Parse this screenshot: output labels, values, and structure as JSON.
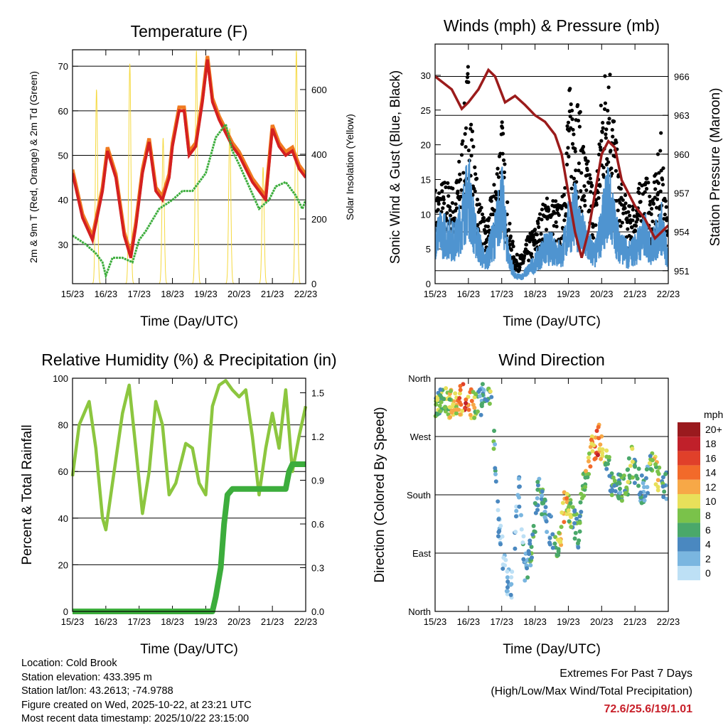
{
  "colors": {
    "red": "#d42020",
    "orange": "#f07a20",
    "green": "#3cad3c",
    "yellow": "#f5d940",
    "black": "#000000",
    "blue": "#4f94d0",
    "maroon": "#9b1b1b",
    "rh": "#8cc63f",
    "precip": "#3cad3c",
    "extremes": "#c8202a"
  },
  "chart_data": [
    {
      "type": "line",
      "title": "Temperature (F)",
      "xlabel": "Time (Day/UTC)",
      "ylabel": "2m & 9m T (Red, Orange) & 2m Td (Green)",
      "ylabel_right": "Solar Insolation (Yellow)",
      "xticks": [
        "15/23",
        "16/23",
        "17/23",
        "18/23",
        "19/23",
        "20/23",
        "21/23",
        "22/23"
      ],
      "ylim": [
        21.2,
        73.7
      ],
      "yticks": [
        30,
        40,
        50,
        60,
        70
      ],
      "ylim_right": [
        0,
        723
      ],
      "yticks_right": [
        0,
        200,
        400,
        600
      ],
      "series": [
        {
          "name": "2m T",
          "color": "red",
          "x": [
            0,
            0.3,
            0.6,
            0.9,
            1.05,
            1.3,
            1.55,
            1.75,
            1.9,
            2.1,
            2.3,
            2.5,
            2.7,
            2.9,
            3.0,
            3.2,
            3.35,
            3.5,
            3.7,
            3.9,
            4.05,
            4.2,
            4.4,
            4.6,
            4.8,
            5.0,
            5.2,
            5.4,
            5.6,
            5.8,
            6.0,
            6.2,
            6.4,
            6.6,
            6.8,
            7.0
          ],
          "y": [
            46,
            36,
            31,
            42,
            51,
            45,
            32,
            27,
            34,
            46,
            53,
            42,
            40,
            45,
            52,
            60,
            60,
            50,
            52,
            62,
            71.5,
            62,
            58,
            55,
            52,
            50,
            47,
            44,
            42,
            40,
            56,
            52,
            50,
            51,
            47,
            45
          ]
        },
        {
          "name": "Td",
          "color": "green",
          "x": [
            0,
            0.4,
            0.7,
            0.9,
            1.0,
            1.2,
            1.5,
            1.8,
            2.0,
            2.2,
            2.6,
            3.0,
            3.3,
            3.6,
            4.0,
            4.3,
            4.6,
            4.8,
            5.0,
            5.3,
            5.6,
            5.9,
            6.1,
            6.4,
            6.7,
            6.9,
            7.0
          ],
          "y": [
            32,
            30,
            28,
            26,
            23,
            27,
            27,
            26,
            31,
            33,
            38,
            40,
            42,
            42,
            46,
            54,
            57,
            51,
            48,
            43,
            38,
            40,
            43,
            44,
            41,
            38,
            40
          ]
        },
        {
          "name": "Solar",
          "color": "yellow",
          "peak_day_offsets": [
            0.72,
            1.72,
            2.72,
            3.72,
            4.72,
            5.72,
            6.72
          ],
          "peaks": [
            600,
            680,
            450,
            720,
            480,
            360,
            720
          ]
        }
      ]
    },
    {
      "type": "scatter",
      "title": "Winds (mph) & Pressure (mb)",
      "xlabel": "Time (Day/UTC)",
      "ylabel": "Sonic Wind & Gust (Blue, Black)",
      "ylabel_right": "Station Pressure (Maroon)",
      "xticks": [
        "15/23",
        "16/23",
        "17/23",
        "18/23",
        "19/23",
        "20/23",
        "21/23",
        "22/23"
      ],
      "ylim": [
        0,
        34.5
      ],
      "yticks": [
        0,
        5,
        10,
        15,
        20,
        25,
        30
      ],
      "ylim_right": [
        950,
        968.5
      ],
      "yticks_right": [
        951,
        954,
        957,
        960,
        963,
        966
      ],
      "wind_x": [
        0,
        0.3,
        0.6,
        0.8,
        1.0,
        1.2,
        1.5,
        1.8,
        2.0,
        2.2,
        2.4,
        2.6,
        2.8,
        3.0,
        3.3,
        3.6,
        3.8,
        4.0,
        4.2,
        4.5,
        4.8,
        5.0,
        5.2,
        5.5,
        5.8,
        6.0,
        6.3,
        6.5,
        6.8,
        7.0
      ],
      "wind_sonic": [
        7,
        7,
        6,
        9,
        13,
        7,
        3,
        7,
        12,
        4,
        1,
        1,
        2,
        3,
        5,
        5,
        4,
        8,
        10,
        6,
        4,
        8,
        12,
        6,
        4,
        5,
        7,
        5,
        8,
        3
      ],
      "wind_gust": [
        10,
        11,
        10,
        15,
        24,
        12,
        6,
        11,
        18,
        7,
        3,
        3,
        5,
        6,
        9,
        9,
        8,
        20,
        22,
        14,
        10,
        20,
        26,
        12,
        8,
        9,
        12,
        9,
        16,
        5
      ],
      "pressure_x": [
        0,
        0.5,
        0.8,
        1.0,
        1.3,
        1.6,
        1.8,
        2.1,
        2.4,
        2.7,
        3.0,
        3.3,
        3.6,
        3.8,
        4.0,
        4.2,
        4.4,
        4.6,
        4.8,
        5.0,
        5.2,
        5.4,
        5.6,
        5.8,
        6.0,
        6.3,
        6.6,
        7.0
      ],
      "pressure": [
        966,
        965,
        963.5,
        964,
        965,
        966.5,
        966,
        964,
        964.5,
        963.8,
        963,
        962.5,
        961.5,
        960,
        957,
        954,
        952,
        954,
        957,
        960,
        961,
        960.5,
        958,
        957,
        956,
        955,
        953.5,
        954.5
      ]
    },
    {
      "type": "line",
      "title": "Relative Humidity (%) & Precipitation (in)",
      "xlabel": "Time (Day/UTC)",
      "ylabel": "Percent & Total Rainfall",
      "xticks": [
        "15/23",
        "16/23",
        "17/23",
        "18/23",
        "19/23",
        "20/23",
        "21/23",
        "22/23"
      ],
      "ylim": [
        0,
        100
      ],
      "yticks": [
        0,
        20,
        40,
        60,
        80,
        100
      ],
      "ylim_right": [
        0,
        1.6
      ],
      "yticks_right": [
        "0.0",
        "0.3",
        "0.6",
        "0.9",
        "1.2",
        "1.5"
      ],
      "rh_x": [
        0,
        0.2,
        0.5,
        0.7,
        0.9,
        1.0,
        1.2,
        1.5,
        1.7,
        1.9,
        2.1,
        2.3,
        2.5,
        2.7,
        2.9,
        3.1,
        3.4,
        3.6,
        3.8,
        4.0,
        4.2,
        4.4,
        4.6,
        4.8,
        5.0,
        5.2,
        5.4,
        5.6,
        5.8,
        6.0,
        6.2,
        6.4,
        6.6,
        6.8,
        7.0
      ],
      "rh": [
        58,
        80,
        90,
        70,
        40,
        35,
        55,
        85,
        97,
        70,
        42,
        60,
        90,
        80,
        50,
        55,
        72,
        70,
        55,
        50,
        88,
        97,
        99,
        95,
        92,
        95,
        75,
        50,
        70,
        85,
        70,
        95,
        60,
        75,
        88
      ],
      "precip_x": [
        0,
        4.2,
        4.3,
        4.45,
        4.55,
        4.65,
        4.8,
        6.4,
        6.5,
        6.6,
        7.0
      ],
      "precip": [
        0,
        0,
        0.1,
        0.3,
        0.6,
        0.8,
        0.84,
        0.84,
        0.96,
        1.01,
        1.01
      ]
    },
    {
      "type": "scatter",
      "title": "Wind Direction",
      "xlabel": "Time (Day/UTC)",
      "ylabel": "Direction (Colored By Speed)",
      "xticks": [
        "15/23",
        "16/23",
        "17/23",
        "18/23",
        "19/23",
        "20/23",
        "21/23",
        "22/23"
      ],
      "yticks": [
        "North",
        "East",
        "South",
        "West",
        "North"
      ],
      "ylim": [
        0,
        360
      ],
      "dir_x": [
        0,
        0.3,
        0.6,
        0.9,
        1.1,
        1.3,
        1.5,
        1.7,
        1.9,
        2.1,
        2.3,
        2.5,
        2.7,
        2.9,
        3.1,
        3.3,
        3.5,
        3.7,
        3.9,
        4.1,
        4.3,
        4.5,
        4.7,
        4.9,
        5.1,
        5.3,
        5.5,
        5.7,
        5.9,
        6.1,
        6.3,
        6.5,
        6.7,
        6.9
      ],
      "dir": [
        325,
        325,
        320,
        335,
        320,
        320,
        330,
        320,
        140,
        60,
        30,
        200,
        60,
        100,
        190,
        150,
        120,
        90,
        170,
        150,
        120,
        215,
        250,
        265,
        250,
        200,
        190,
        185,
        230,
        200,
        180,
        240,
        210,
        190
      ],
      "speed": [
        6,
        8,
        10,
        15,
        12,
        4,
        3,
        8,
        2,
        1,
        1,
        2,
        3,
        6,
        5,
        4,
        3,
        8,
        12,
        7,
        5,
        8,
        12,
        15,
        8,
        6,
        4,
        6,
        8,
        3,
        4,
        8,
        10,
        3
      ],
      "legend": {
        "title": "mph",
        "labels": [
          "20+",
          "18",
          "16",
          "14",
          "12",
          "10",
          "8",
          "6",
          "4",
          "2",
          "0"
        ],
        "colors": [
          "#9a1a1e",
          "#c0202a",
          "#e0402a",
          "#f26a2a",
          "#f7a847",
          "#e8e05a",
          "#7ac24a",
          "#4aa86a",
          "#4a88c0",
          "#7ab6e0",
          "#bde0f5"
        ]
      }
    }
  ],
  "info": {
    "location": "Location: Cold Brook",
    "elevation": "Station elevation: 433.395 m",
    "latlon": "Station lat/lon: 43.2613; -74.9788",
    "created": "Figure created on Wed, 2025-10-22, at 23:21 UTC",
    "recent": "Most recent data timestamp: 2025/10/22 23:15:00"
  },
  "extremes": {
    "title": "Extremes For Past 7 Days",
    "subtitle": "(High/Low/Max Wind/Total Precipitation)",
    "values": "72.6/25.6/19/1.01"
  }
}
